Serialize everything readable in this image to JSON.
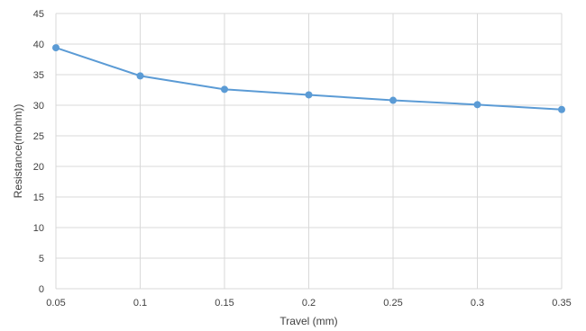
{
  "chart_data": {
    "type": "line",
    "x": [
      0.05,
      0.1,
      0.15,
      0.2,
      0.25,
      0.3,
      0.35
    ],
    "series": [
      {
        "values": [
          39.4,
          34.8,
          32.6,
          31.7,
          30.8,
          30.1,
          29.3
        ]
      }
    ],
    "title": "",
    "xlabel": "Travel (mm)",
    "ylabel": "Resistance(mohm))",
    "xlim": [
      0.05,
      0.35
    ],
    "ylim": [
      0,
      45
    ],
    "x_ticks": [
      "0.05",
      "0.1",
      "0.15",
      "0.2",
      "0.25",
      "0.3",
      "0.35"
    ],
    "y_ticks": [
      "0",
      "5",
      "10",
      "15",
      "20",
      "25",
      "30",
      "35",
      "40",
      "45"
    ],
    "grid": true,
    "legend": "none",
    "colors": {
      "series": "#5b9bd5",
      "grid": "#d9d9d9",
      "text": "#404040"
    }
  }
}
